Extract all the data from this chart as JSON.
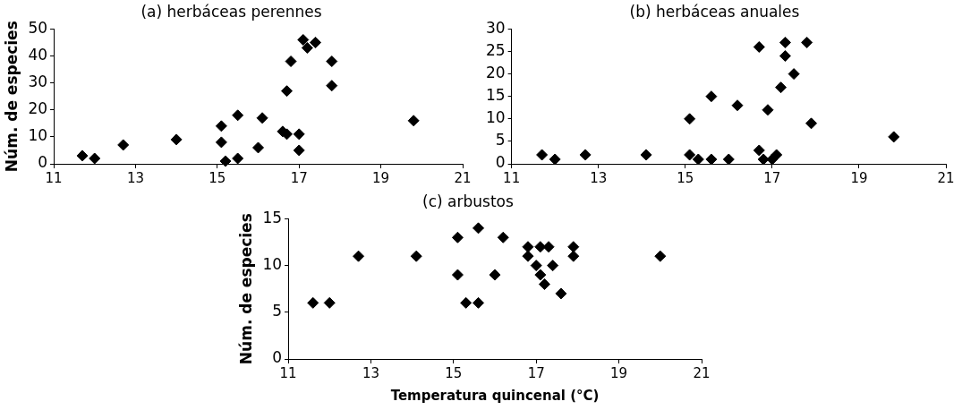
{
  "chart_data": [
    {
      "type": "scatter",
      "title": "(a) herbáceas perennes",
      "ylabel": "Núm. de especies",
      "marker": "diamond",
      "grid": false,
      "legend": false,
      "xlim": [
        11,
        21
      ],
      "xticks": [
        11,
        13,
        15,
        17,
        19,
        21
      ],
      "ylim": [
        0,
        50
      ],
      "yticks": [
        0,
        10,
        20,
        30,
        40,
        50
      ],
      "series": [
        {
          "color": "#000000",
          "x": [
            11.7,
            12.0,
            12.7,
            14.0,
            15.1,
            15.1,
            15.2,
            15.5,
            15.5,
            16.0,
            16.1,
            16.6,
            16.7,
            16.7,
            16.8,
            17.0,
            17.0,
            17.1,
            17.2,
            17.4,
            17.8,
            17.8,
            19.8
          ],
          "values": [
            3,
            2,
            7,
            9,
            14,
            8,
            1,
            2,
            18,
            6,
            17,
            12,
            11,
            27,
            38,
            5,
            11,
            46,
            43,
            45,
            38,
            29,
            16
          ]
        }
      ]
    },
    {
      "type": "scatter",
      "title": "(b) herbáceas anuales",
      "marker": "diamond",
      "grid": false,
      "legend": false,
      "xlim": [
        11,
        21
      ],
      "xticks": [
        11,
        13,
        15,
        17,
        19,
        21
      ],
      "ylim": [
        0,
        30
      ],
      "yticks": [
        0,
        5,
        10,
        15,
        20,
        25,
        30
      ],
      "series": [
        {
          "color": "#000000",
          "x": [
            11.7,
            12.0,
            12.7,
            14.1,
            15.1,
            15.1,
            15.3,
            15.6,
            15.6,
            16.0,
            16.2,
            16.7,
            16.7,
            16.8,
            16.9,
            17.0,
            17.1,
            17.2,
            17.3,
            17.3,
            17.5,
            17.8,
            17.9,
            19.8
          ],
          "values": [
            2,
            1,
            2,
            2,
            10,
            2,
            1,
            15,
            1,
            1,
            13,
            3,
            26,
            1,
            12,
            1,
            2,
            17,
            27,
            24,
            20,
            27,
            9,
            6
          ]
        }
      ]
    },
    {
      "type": "scatter",
      "title": "(c) arbustos",
      "ylabel": "Núm. de especies",
      "xlabel": "Temperatura quincenal (°C)",
      "marker": "diamond",
      "grid": false,
      "legend": false,
      "xlim": [
        11,
        21
      ],
      "xticks": [
        11,
        13,
        15,
        17,
        19,
        21
      ],
      "ylim": [
        0,
        15
      ],
      "yticks": [
        0,
        5,
        10,
        15
      ],
      "series": [
        {
          "color": "#000000",
          "x": [
            11.6,
            12.0,
            12.7,
            14.1,
            15.1,
            15.1,
            15.3,
            15.6,
            15.6,
            16.0,
            16.2,
            16.8,
            16.8,
            17.0,
            17.1,
            17.1,
            17.2,
            17.3,
            17.4,
            17.6,
            17.9,
            17.9,
            20.0
          ],
          "values": [
            6,
            6,
            11,
            11,
            13,
            9,
            6,
            14,
            6,
            9,
            13,
            12,
            11,
            10,
            9,
            12,
            8,
            12,
            10,
            7,
            12,
            11,
            11
          ]
        }
      ]
    }
  ]
}
